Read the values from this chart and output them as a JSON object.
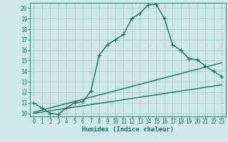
{
  "xlabel": "Humidex (Indice chaleur)",
  "bg_color": "#cce8e8",
  "grid_color": "#aacccc",
  "line_color": "#1e6b5e",
  "xlim": [
    -0.5,
    23.5
  ],
  "ylim": [
    9.7,
    20.5
  ],
  "xticks": [
    0,
    1,
    2,
    3,
    4,
    5,
    6,
    7,
    8,
    9,
    10,
    11,
    12,
    13,
    14,
    15,
    16,
    17,
    18,
    19,
    20,
    21,
    22,
    23
  ],
  "yticks": [
    10,
    11,
    12,
    13,
    14,
    15,
    16,
    17,
    18,
    19,
    20
  ],
  "series1_x": [
    0,
    1,
    2,
    3,
    4,
    5,
    6,
    7,
    8,
    9,
    10,
    11,
    12,
    13,
    14,
    15,
    16,
    17,
    18,
    19,
    20,
    21,
    22,
    23
  ],
  "series1_y": [
    11.0,
    10.5,
    10.0,
    9.9,
    10.5,
    11.0,
    11.1,
    12.1,
    15.5,
    16.5,
    17.0,
    17.5,
    19.0,
    19.5,
    20.3,
    20.35,
    19.0,
    16.5,
    16.0,
    15.2,
    15.1,
    14.5,
    14.0,
    13.5
  ],
  "series2_x": [
    0,
    23
  ],
  "series2_y": [
    10.0,
    12.7
  ],
  "series3_x": [
    0,
    23
  ],
  "series3_y": [
    10.1,
    14.8
  ],
  "marker": "+",
  "marker_size": 4.0,
  "linewidth": 1.0,
  "xlabel_fontsize": 6.5,
  "tick_fontsize": 5.5
}
